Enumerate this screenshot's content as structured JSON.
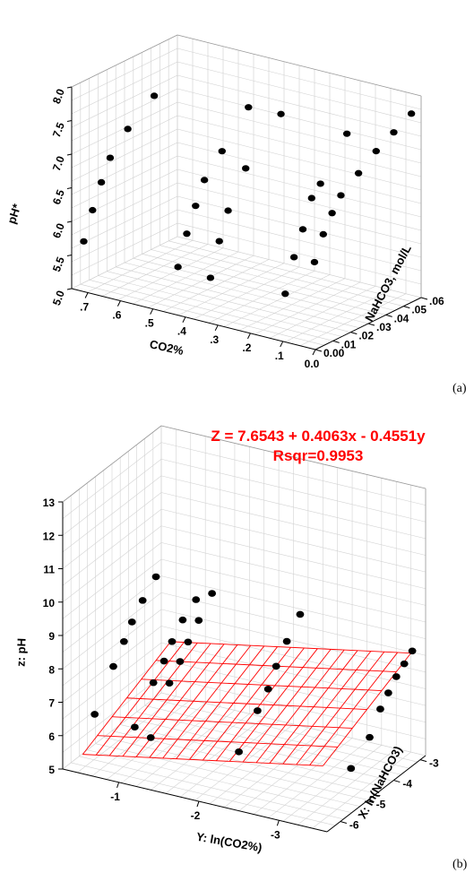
{
  "chart_data": [
    {
      "type": "scatter",
      "panel_label": "(a)",
      "xlabel": "CO2%",
      "ylabel": "NaHCO3, mol/L",
      "zlabel": "pH*",
      "x_ticks": [
        "0.0",
        ".1",
        ".2",
        ".3",
        ".4",
        ".5",
        ".6",
        ".7"
      ],
      "y_ticks": [
        "0.00",
        ".01",
        ".02",
        ".03",
        ".04",
        ".05",
        ".06"
      ],
      "z_ticks": [
        "5.0",
        "5.5",
        "6.0",
        "6.5",
        "7.0",
        "7.5",
        "8.0"
      ],
      "xlim": [
        0,
        0.75
      ],
      "ylim": [
        0,
        0.06
      ],
      "zlim": [
        5.0,
        8.0
      ],
      "grid": true,
      "points": [
        {
          "co2": 0.74,
          "nahco3": 0.005,
          "ph": 5.65
        },
        {
          "co2": 0.74,
          "nahco3": 0.01,
          "ph": 6.05
        },
        {
          "co2": 0.74,
          "nahco3": 0.015,
          "ph": 6.4
        },
        {
          "co2": 0.74,
          "nahco3": 0.02,
          "ph": 6.7
        },
        {
          "co2": 0.74,
          "nahco3": 0.03,
          "ph": 7.0
        },
        {
          "co2": 0.74,
          "nahco3": 0.045,
          "ph": 7.3
        },
        {
          "co2": 0.45,
          "nahco3": 0.005,
          "ph": 5.62
        },
        {
          "co2": 0.45,
          "nahco3": 0.01,
          "ph": 6.05
        },
        {
          "co2": 0.45,
          "nahco3": 0.015,
          "ph": 6.4
        },
        {
          "co2": 0.45,
          "nahco3": 0.02,
          "ph": 6.72
        },
        {
          "co2": 0.45,
          "nahco3": 0.03,
          "ph": 7.02
        },
        {
          "co2": 0.45,
          "nahco3": 0.045,
          "ph": 7.48
        },
        {
          "co2": 0.35,
          "nahco3": 0.005,
          "ph": 5.58
        },
        {
          "co2": 0.35,
          "nahco3": 0.01,
          "ph": 6.06
        },
        {
          "co2": 0.35,
          "nahco3": 0.015,
          "ph": 6.45
        },
        {
          "co2": 0.35,
          "nahco3": 0.025,
          "ph": 6.95
        },
        {
          "co2": 0.35,
          "nahco3": 0.045,
          "ph": 7.5
        },
        {
          "co2": 0.12,
          "nahco3": 0.005,
          "ph": 5.62
        },
        {
          "co2": 0.12,
          "nahco3": 0.01,
          "ph": 6.1
        },
        {
          "co2": 0.12,
          "nahco3": 0.015,
          "ph": 6.45
        },
        {
          "co2": 0.12,
          "nahco3": 0.02,
          "ph": 6.85
        },
        {
          "co2": 0.12,
          "nahco3": 0.025,
          "ph": 7.0
        },
        {
          "co2": 0.12,
          "nahco3": 0.04,
          "ph": 7.55
        },
        {
          "co2": 0.03,
          "nahco3": 0.005,
          "ph": 6.2
        },
        {
          "co2": 0.03,
          "nahco3": 0.01,
          "ph": 6.55
        },
        {
          "co2": 0.03,
          "nahco3": 0.015,
          "ph": 6.8
        },
        {
          "co2": 0.03,
          "nahco3": 0.02,
          "ph": 7.0
        },
        {
          "co2": 0.03,
          "nahco3": 0.03,
          "ph": 7.2
        },
        {
          "co2": 0.03,
          "nahco3": 0.04,
          "ph": 7.4
        },
        {
          "co2": 0.03,
          "nahco3": 0.05,
          "ph": 7.55
        },
        {
          "co2": 0.03,
          "nahco3": 0.06,
          "ph": 7.7
        }
      ]
    },
    {
      "type": "scatter",
      "panel_label": "(b)",
      "title": "Z = 7.6543 + 0.4063x - 0.4551y",
      "subtitle": "Rsqr=0.9953",
      "xlabel": "X: ln(NaHCO3)",
      "ylabel": "Y: ln(CO2%)",
      "zlabel": "z: pH",
      "x_ticks": [
        "-6",
        "-5",
        "-4",
        "-3"
      ],
      "y_ticks": [
        "-1",
        "-2",
        "-3"
      ],
      "z_ticks": [
        "5",
        "6",
        "7",
        "8",
        "9",
        "10",
        "11",
        "12",
        "13"
      ],
      "xlim": [
        -6.5,
        -2.8
      ],
      "ylim": [
        -0.3,
        -3.6
      ],
      "zlim": [
        5,
        13
      ],
      "grid": true,
      "fit_plane": {
        "intercept": 7.6543,
        "coef_x": 0.4063,
        "coef_y": -0.4551,
        "color": "#ff0000"
      },
      "points": [
        {
          "x": -5.3,
          "y": -0.3,
          "z": 5.9
        },
        {
          "x": -4.6,
          "y": -0.3,
          "z": 6.9
        },
        {
          "x": -4.2,
          "y": -0.3,
          "z": 7.4
        },
        {
          "x": -3.9,
          "y": -0.3,
          "z": 7.8
        },
        {
          "x": -3.5,
          "y": -0.3,
          "z": 8.2
        },
        {
          "x": -3.0,
          "y": -0.3,
          "z": 8.6
        },
        {
          "x": -5.3,
          "y": -0.8,
          "z": 5.8
        },
        {
          "x": -4.6,
          "y": -0.8,
          "z": 6.7
        },
        {
          "x": -4.2,
          "y": -0.8,
          "z": 7.1
        },
        {
          "x": -3.9,
          "y": -0.8,
          "z": 7.5
        },
        {
          "x": -3.5,
          "y": -0.8,
          "z": 7.9
        },
        {
          "x": -3.0,
          "y": -0.8,
          "z": 8.2
        },
        {
          "x": -5.3,
          "y": -1.0,
          "z": 5.6
        },
        {
          "x": -4.6,
          "y": -1.0,
          "z": 6.8
        },
        {
          "x": -4.2,
          "y": -1.0,
          "z": 7.2
        },
        {
          "x": -3.9,
          "y": -1.0,
          "z": 7.6
        },
        {
          "x": -3.5,
          "y": -1.0,
          "z": 8.0
        },
        {
          "x": -3.0,
          "y": -1.0,
          "z": 8.5
        },
        {
          "x": -5.3,
          "y": -2.1,
          "z": 5.8
        },
        {
          "x": -4.6,
          "y": -2.1,
          "z": 6.6
        },
        {
          "x": -4.2,
          "y": -2.1,
          "z": 7.0
        },
        {
          "x": -3.9,
          "y": -2.1,
          "z": 7.5
        },
        {
          "x": -3.5,
          "y": -2.1,
          "z": 8.0
        },
        {
          "x": -3.0,
          "y": -2.1,
          "z": 8.5
        },
        {
          "x": -5.3,
          "y": -3.5,
          "z": 6.1
        },
        {
          "x": -4.6,
          "y": -3.5,
          "z": 6.6
        },
        {
          "x": -4.2,
          "y": -3.5,
          "z": 7.2
        },
        {
          "x": -3.9,
          "y": -3.5,
          "z": 7.5
        },
        {
          "x": -3.6,
          "y": -3.5,
          "z": 7.8
        },
        {
          "x": -3.3,
          "y": -3.5,
          "z": 8.0
        },
        {
          "x": -3.0,
          "y": -3.5,
          "z": 8.2
        }
      ]
    }
  ]
}
